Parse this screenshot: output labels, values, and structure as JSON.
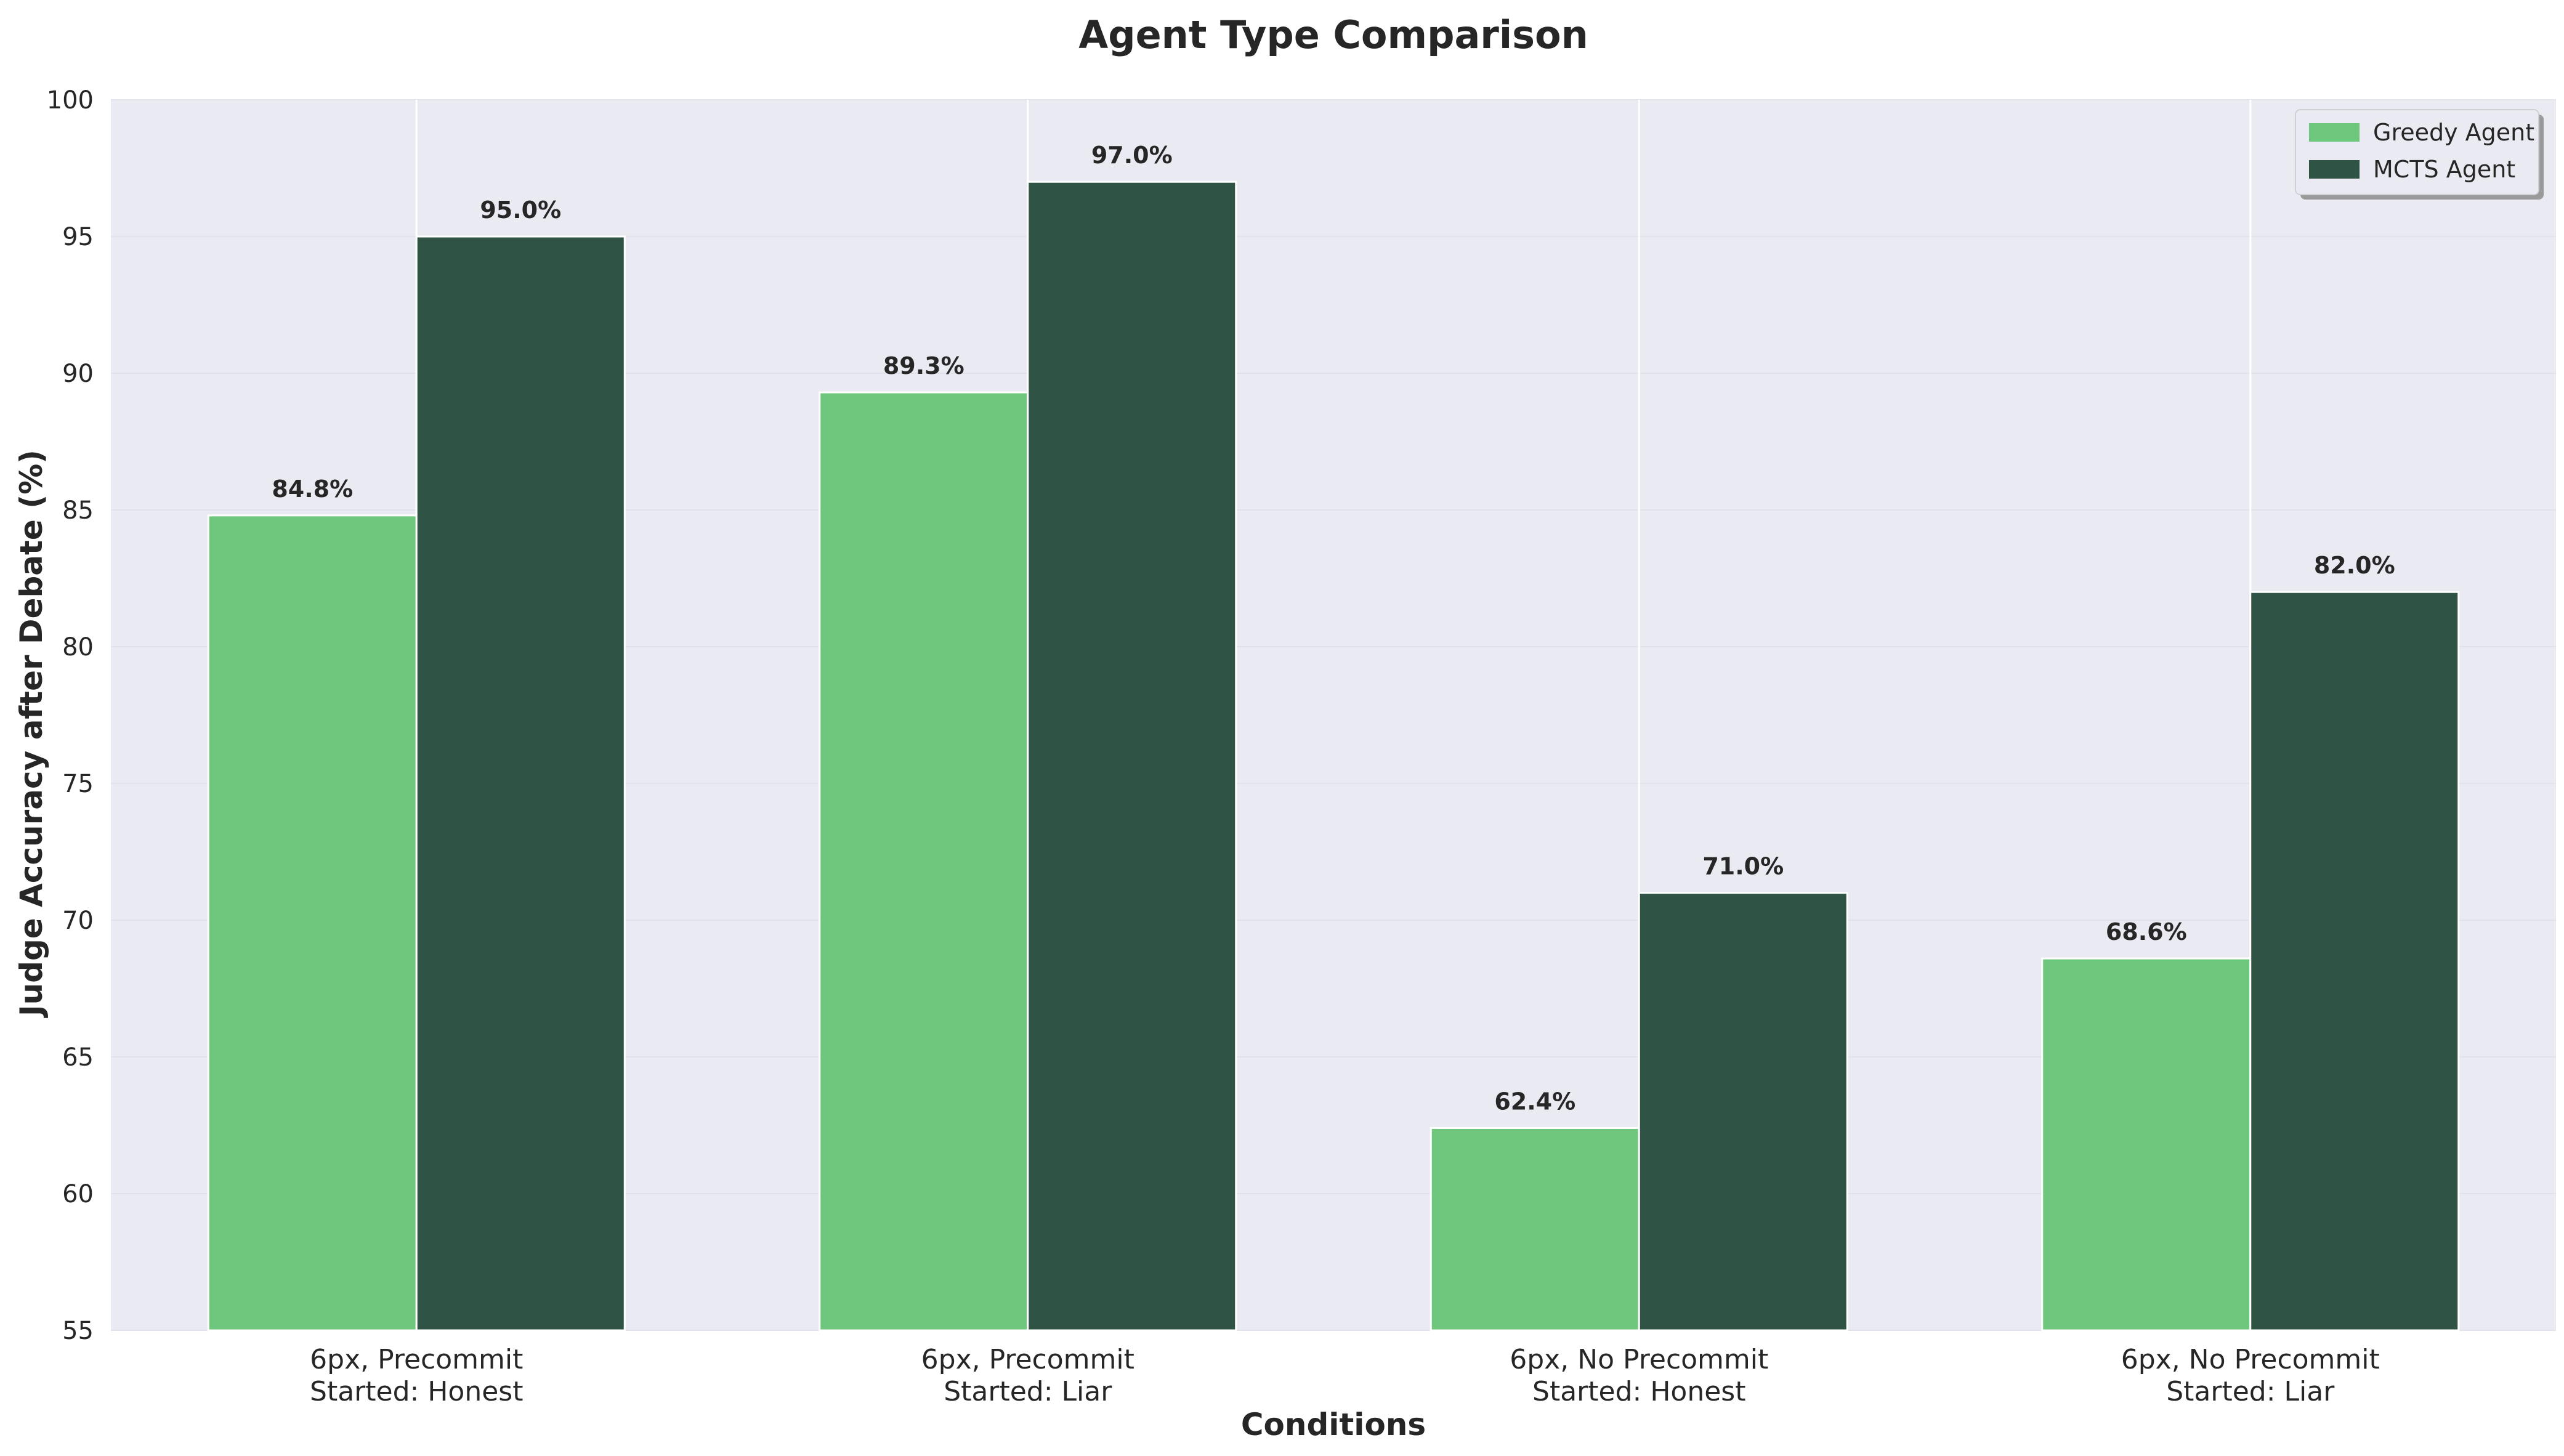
{
  "chart_data": {
    "type": "bar",
    "title": "Agent Type Comparison",
    "xlabel": "Conditions",
    "ylabel": "Judge Accuracy after Debate (%)",
    "ylim": [
      55,
      100
    ],
    "yticks": [
      55,
      60,
      65,
      70,
      75,
      80,
      85,
      90,
      95,
      100
    ],
    "categories": [
      [
        "6px, Precommit",
        "Started: Honest"
      ],
      [
        "6px, Precommit",
        "Started: Liar"
      ],
      [
        "6px, No Precommit",
        "Started: Honest"
      ],
      [
        "6px, No Precommit",
        "Started: Liar"
      ]
    ],
    "series": [
      {
        "name": "Greedy Agent",
        "color": "#6fc77d",
        "values": [
          84.8,
          89.3,
          62.4,
          68.6
        ],
        "labels": [
          "84.8%",
          "89.3%",
          "62.4%",
          "68.6%"
        ]
      },
      {
        "name": "MCTS Agent",
        "color": "#2f5446",
        "values": [
          95.0,
          97.0,
          71.0,
          82.0
        ],
        "labels": [
          "95.0%",
          "97.0%",
          "71.0%",
          "82.0%"
        ]
      }
    ],
    "grid": true,
    "legend": "top-right",
    "background": "#eaeaf2"
  }
}
